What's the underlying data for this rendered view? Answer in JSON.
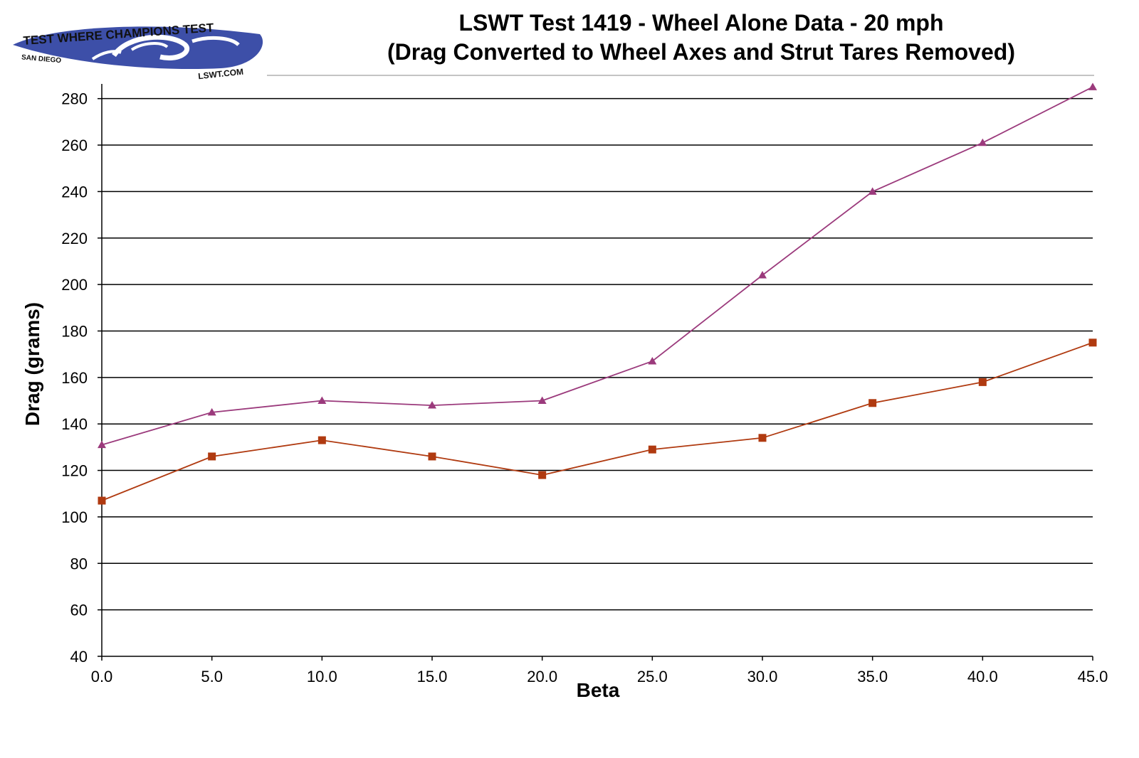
{
  "logo": {
    "top_text": "TEST WHERE CHAMPIONS TEST",
    "left_text": "SAN DIEGO",
    "right_text": "LSWT.COM"
  },
  "chart_data": {
    "type": "line",
    "title_lines": [
      "LSWT Test 1419 - Wheel Alone Data - 20 mph",
      "(Drag Converted to Wheel Axes and Strut Tares Removed)"
    ],
    "xlabel": "Beta",
    "ylabel": "Drag (grams)",
    "x": [
      0.0,
      5.0,
      10.0,
      15.0,
      20.0,
      25.0,
      30.0,
      35.0,
      40.0,
      45.0
    ],
    "x_tick_labels": [
      "0.0",
      "5.0",
      "10.0",
      "15.0",
      "20.0",
      "25.0",
      "30.0",
      "35.0",
      "40.0",
      "45.0"
    ],
    "ylim": [
      40,
      290
    ],
    "y_ticks": [
      40,
      60,
      80,
      100,
      120,
      140,
      160,
      180,
      200,
      220,
      240,
      260,
      280
    ],
    "grid": true,
    "legend": "none",
    "series": [
      {
        "marker": "triangle",
        "color": "#9b3a7c",
        "values": [
          131,
          145,
          150,
          148,
          150,
          167,
          204,
          240,
          261,
          285
        ]
      },
      {
        "marker": "square",
        "color": "#b03a10",
        "values": [
          107,
          126,
          133,
          126,
          118,
          129,
          134,
          149,
          158,
          175
        ]
      }
    ]
  }
}
